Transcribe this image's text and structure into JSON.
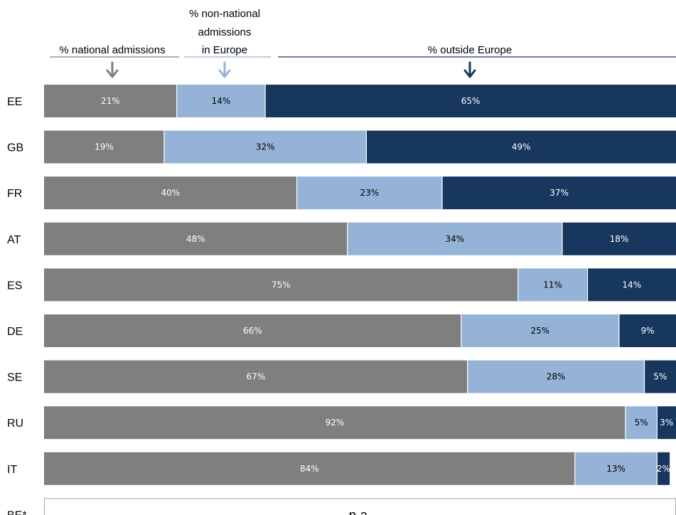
{
  "chart_data": {
    "type": "bar",
    "orientation": "horizontal",
    "stacked": true,
    "categories": [
      "EE",
      "GB",
      "FR",
      "AT",
      "ES",
      "DE",
      "SE",
      "RU",
      "IT",
      "BE*"
    ],
    "series": [
      {
        "name": "% national admissions",
        "color": "#7f7f7f",
        "values": [
          21,
          19,
          40,
          48,
          75,
          66,
          67,
          92,
          84,
          null
        ],
        "labels": [
          "21%",
          "19%",
          "40%",
          "48%",
          "75%",
          "66%",
          "67%",
          "92%",
          "84%",
          ""
        ]
      },
      {
        "name": "% non-national admissions in Europe",
        "color": "#95b3d7",
        "values": [
          14,
          32,
          23,
          34,
          11,
          25,
          28,
          5,
          13,
          null
        ],
        "labels": [
          "14%",
          "32%",
          "23%",
          "34%",
          "11%",
          "25%",
          "28%",
          "5%",
          "13%",
          ""
        ]
      },
      {
        "name": "% outside Europe",
        "color": "#17375e",
        "values": [
          65,
          49,
          37,
          18,
          14,
          9,
          5,
          3,
          2,
          null
        ],
        "labels": [
          "65%",
          "49%",
          "37%",
          "18%",
          "14%",
          "9%",
          "5%",
          "3%",
          "2%",
          ""
        ]
      }
    ],
    "headers": [
      {
        "lines": [
          "% national admissions"
        ],
        "arrow_color": "#7f7f7f"
      },
      {
        "lines": [
          "% non-national",
          "admissions",
          "in Europe"
        ],
        "arrow_color": "#95b3d7"
      },
      {
        "lines": [
          "% outside Europe"
        ],
        "arrow_color": "#17375e"
      }
    ],
    "na_label": "n.a.",
    "xlim": [
      0,
      100
    ],
    "legend": "top"
  }
}
